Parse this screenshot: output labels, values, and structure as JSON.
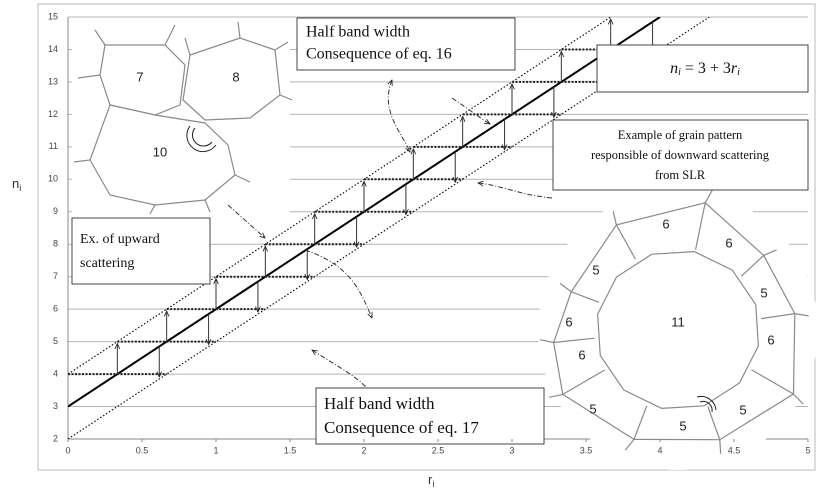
{
  "chart_data": {
    "type": "line",
    "xlabel": {
      "text": "r",
      "sub": "i"
    },
    "ylabel": {
      "text": "n",
      "sub": "i"
    },
    "xlim": [
      0,
      5
    ],
    "xticks": [
      0,
      0.5,
      1,
      1.5,
      2,
      2.5,
      3,
      3.5,
      4,
      4.5,
      5
    ],
    "ylim": [
      2,
      15
    ],
    "yticks": [
      2,
      3,
      4,
      5,
      6,
      7,
      8,
      9,
      10,
      11,
      12,
      13,
      14,
      15
    ],
    "grid": true,
    "series": [
      {
        "color": "#000000",
        "style": "solid",
        "x": [
          0,
          4
        ],
        "values": [
          3,
          15
        ]
      },
      {
        "color": "#000000",
        "style": "dotted",
        "x": [
          0,
          3.667
        ],
        "values": [
          4,
          15
        ]
      },
      {
        "color": "#000000",
        "style": "dotted",
        "x": [
          0,
          4.333
        ],
        "values": [
          2,
          15
        ]
      }
    ],
    "annotations": [
      {
        "lines": [
          "Half band width",
          "Consequence of eq. 16"
        ]
      },
      {
        "lines": [
          "Half band width",
          "Consequence of eq. 17"
        ]
      },
      {
        "lines": [
          "Ex. of upward",
          "scattering"
        ]
      },
      {
        "lines": [
          "Example of  grain pattern",
          "responsible of downward scattering",
          "from SLR"
        ]
      }
    ],
    "formula": {
      "lhs": "n",
      "lhs_sub": "i",
      "rhs": " = 3 + 3",
      "rhs_var": "r",
      "rhs_sub": "i"
    },
    "grain_labels": {
      "left": [
        "7",
        "8",
        "10"
      ],
      "right": [
        "11",
        "6",
        "6",
        "5",
        "5",
        "6",
        "6",
        "6",
        "5",
        "5",
        "5"
      ]
    }
  }
}
